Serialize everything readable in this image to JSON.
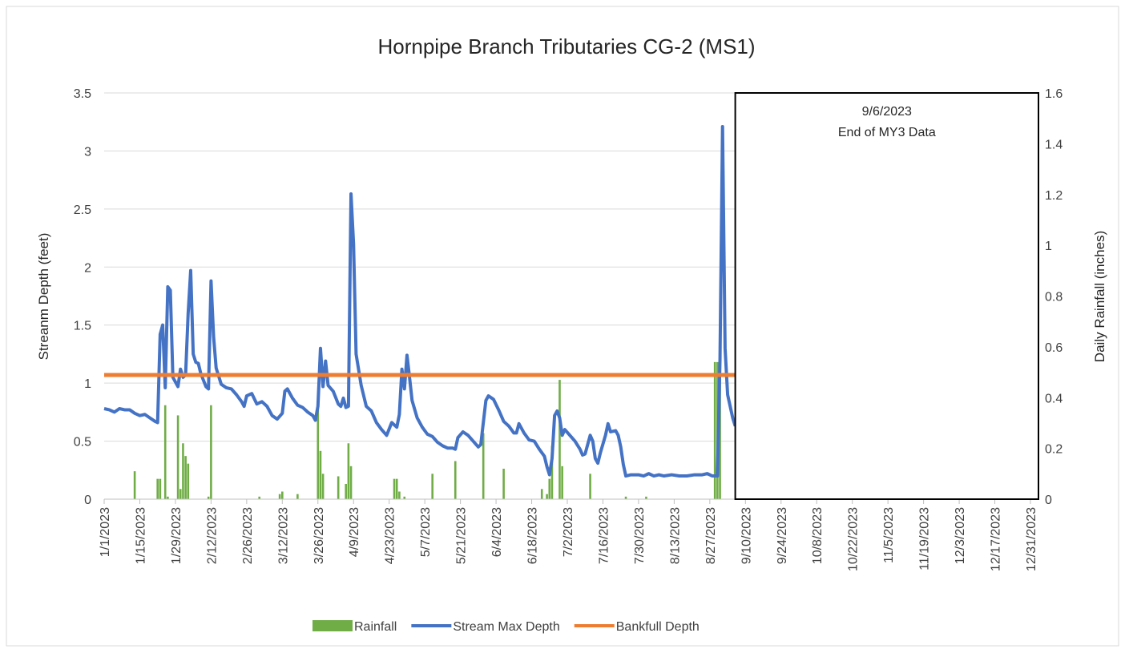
{
  "chart_data": {
    "type": "combo",
    "title": "Hornpipe Branch Tributaries CG-2 (MS1)",
    "y_label": "Streanm Depth (feet)",
    "y2_label": "Daily Rainfall (inches)",
    "xlim": [
      "1/1/2023",
      "12/31/2023"
    ],
    "xticks": [
      "1/1/2023",
      "1/15/2023",
      "1/29/2023",
      "2/12/2023",
      "2/26/2023",
      "3/12/2023",
      "3/26/2023",
      "4/9/2023",
      "4/23/2023",
      "5/7/2023",
      "5/21/2023",
      "6/4/2023",
      "6/18/2023",
      "7/2/2023",
      "7/16/2023",
      "7/30/2023",
      "8/13/2023",
      "8/27/2023",
      "9/10/2023",
      "9/24/2023",
      "10/8/2023",
      "10/22/2023",
      "11/5/2023",
      "11/19/2023",
      "12/3/2023",
      "12/17/2023",
      "12/31/2023"
    ],
    "ylim": [
      0,
      3.5
    ],
    "yticks": [
      0,
      0.5,
      1,
      1.5,
      2,
      2.5,
      3,
      3.5
    ],
    "y2lim": [
      0,
      1.6
    ],
    "y2ticks": [
      0,
      0.2,
      0.4,
      0.6,
      0.8,
      1,
      1.2,
      1.4,
      1.6
    ],
    "grid": true,
    "legend": "bottom",
    "annotation": {
      "lines": [
        "9/6/2023",
        "End of MY3 Data"
      ]
    },
    "series": [
      {
        "name": "Rainfall",
        "type": "bar",
        "axis": "y2",
        "color": "#70ad47",
        "x": [
          "1/13/2023",
          "1/22/2023",
          "1/23/2023",
          "1/25/2023",
          "1/26/2023",
          "1/30/2023",
          "1/31/2023",
          "2/1/2023",
          "2/2/2023",
          "2/3/2023",
          "2/11/2023",
          "2/12/2023",
          "3/3/2023",
          "3/11/2023",
          "3/12/2023",
          "3/18/2023",
          "3/26/2023",
          "3/27/2023",
          "3/28/2023",
          "4/3/2023",
          "4/6/2023",
          "4/7/2023",
          "4/8/2023",
          "4/25/2023",
          "4/26/2023",
          "4/27/2023",
          "4/29/2023",
          "5/10/2023",
          "5/19/2023",
          "5/30/2023",
          "6/7/2023",
          "6/22/2023",
          "6/24/2023",
          "6/25/2023",
          "6/26/2023",
          "6/29/2023",
          "6/30/2023",
          "7/11/2023",
          "7/25/2023",
          "8/2/2023",
          "8/29/2023",
          "8/30/2023",
          "8/31/2023"
        ],
        "values": [
          0.11,
          0.08,
          0.08,
          0.37,
          0.01,
          0.33,
          0.04,
          0.22,
          0.17,
          0.14,
          0.01,
          0.37,
          0.01,
          0.02,
          0.03,
          0.02,
          0.37,
          0.19,
          0.1,
          0.09,
          0.06,
          0.22,
          0.13,
          0.08,
          0.08,
          0.03,
          0.01,
          0.1,
          0.15,
          0.26,
          0.12,
          0.04,
          0.02,
          0.08,
          0.21,
          0.47,
          0.13,
          0.1,
          0.01,
          0.01,
          0.54,
          0.54,
          0.48
        ]
      },
      {
        "name": "Stream Max Depth",
        "type": "line",
        "color": "#4472c4",
        "x": [
          "1/1/2023",
          "1/3/2023",
          "1/5/2023",
          "1/7/2023",
          "1/9/2023",
          "1/11/2023",
          "1/13/2023",
          "1/15/2023",
          "1/17/2023",
          "1/19/2023",
          "1/21/2023",
          "1/22/2023",
          "1/23/2023",
          "1/24/2023",
          "1/25/2023",
          "1/26/2023",
          "1/27/2023",
          "1/28/2023",
          "1/30/2023",
          "1/31/2023",
          "2/1/2023",
          "2/2/2023",
          "2/3/2023",
          "2/4/2023",
          "2/5/2023",
          "2/6/2023",
          "2/7/2023",
          "2/8/2023",
          "2/10/2023",
          "2/11/2023",
          "2/12/2023",
          "2/13/2023",
          "2/14/2023",
          "2/16/2023",
          "2/18/2023",
          "2/20/2023",
          "2/22/2023",
          "2/24/2023",
          "2/25/2023",
          "2/26/2023",
          "2/28/2023",
          "3/2/2023",
          "3/4/2023",
          "3/6/2023",
          "3/8/2023",
          "3/10/2023",
          "3/12/2023",
          "3/13/2023",
          "3/14/2023",
          "3/16/2023",
          "3/18/2023",
          "3/20/2023",
          "3/22/2023",
          "3/24/2023",
          "3/25/2023",
          "3/26/2023",
          "3/27/2023",
          "3/28/2023",
          "3/29/2023",
          "3/30/2023",
          "4/1/2023",
          "4/3/2023",
          "4/4/2023",
          "4/5/2023",
          "4/6/2023",
          "4/7/2023",
          "4/8/2023",
          "4/9/2023",
          "4/10/2023",
          "4/12/2023",
          "4/14/2023",
          "4/16/2023",
          "4/18/2023",
          "4/20/2023",
          "4/22/2023",
          "4/24/2023",
          "4/26/2023",
          "4/27/2023",
          "4/28/2023",
          "4/29/2023",
          "4/30/2023",
          "5/1/2023",
          "5/2/2023",
          "5/4/2023",
          "5/6/2023",
          "5/8/2023",
          "5/10/2023",
          "5/12/2023",
          "5/14/2023",
          "5/16/2023",
          "5/18/2023",
          "5/19/2023",
          "5/20/2023",
          "5/22/2023",
          "5/24/2023",
          "5/26/2023",
          "5/28/2023",
          "5/29/2023",
          "5/31/2023",
          "6/1/2023",
          "6/3/2023",
          "6/5/2023",
          "6/7/2023",
          "6/9/2023",
          "6/11/2023",
          "6/12/2023",
          "6/13/2023",
          "6/15/2023",
          "6/17/2023",
          "6/19/2023",
          "6/21/2023",
          "6/23/2023",
          "6/24/2023",
          "6/25/2023",
          "6/26/2023",
          "6/27/2023",
          "6/28/2023",
          "6/29/2023",
          "6/30/2023",
          "7/1/2023",
          "7/3/2023",
          "7/5/2023",
          "7/7/2023",
          "7/8/2023",
          "7/9/2023",
          "7/11/2023",
          "7/12/2023",
          "7/13/2023",
          "7/14/2023",
          "7/15/2023",
          "7/17/2023",
          "7/18/2023",
          "7/19/2023",
          "7/21/2023",
          "7/22/2023",
          "7/23/2023",
          "7/24/2023",
          "7/25/2023",
          "7/27/2023",
          "7/30/2023",
          "8/1/2023",
          "8/3/2023",
          "8/5/2023",
          "8/7/2023",
          "8/9/2023",
          "8/12/2023",
          "8/15/2023",
          "8/18/2023",
          "8/21/2023",
          "8/24/2023",
          "8/26/2023",
          "8/28/2023",
          "8/30/2023",
          "8/31/2023",
          "9/1/2023",
          "9/2/2023",
          "9/3/2023",
          "9/4/2023",
          "9/5/2023",
          "9/6/2023"
        ],
        "values": [
          0.78,
          0.77,
          0.75,
          0.78,
          0.77,
          0.77,
          0.74,
          0.72,
          0.73,
          0.7,
          0.67,
          0.66,
          1.42,
          1.5,
          0.96,
          1.83,
          1.8,
          1.05,
          0.97,
          1.12,
          1.05,
          1.07,
          1.6,
          1.97,
          1.25,
          1.18,
          1.17,
          1.08,
          0.97,
          0.95,
          1.88,
          1.4,
          1.13,
          0.99,
          0.96,
          0.95,
          0.9,
          0.84,
          0.8,
          0.89,
          0.91,
          0.82,
          0.84,
          0.8,
          0.72,
          0.69,
          0.74,
          0.93,
          0.95,
          0.87,
          0.81,
          0.79,
          0.75,
          0.72,
          0.68,
          0.8,
          1.3,
          0.97,
          1.19,
          0.98,
          0.93,
          0.82,
          0.8,
          0.87,
          0.79,
          0.8,
          2.63,
          2.2,
          1.25,
          0.98,
          0.8,
          0.76,
          0.66,
          0.6,
          0.55,
          0.66,
          0.62,
          0.73,
          1.12,
          0.95,
          1.24,
          1.05,
          0.85,
          0.7,
          0.62,
          0.56,
          0.54,
          0.49,
          0.46,
          0.44,
          0.44,
          0.43,
          0.53,
          0.58,
          0.55,
          0.5,
          0.45,
          0.47,
          0.85,
          0.89,
          0.86,
          0.77,
          0.67,
          0.63,
          0.57,
          0.57,
          0.65,
          0.57,
          0.51,
          0.5,
          0.43,
          0.37,
          0.28,
          0.21,
          0.35,
          0.72,
          0.76,
          0.7,
          0.55,
          0.6,
          0.55,
          0.5,
          0.43,
          0.38,
          0.39,
          0.55,
          0.5,
          0.35,
          0.31,
          0.4,
          0.55,
          0.65,
          0.58,
          0.59,
          0.55,
          0.45,
          0.3,
          0.2,
          0.21,
          0.21,
          0.2,
          0.22,
          0.2,
          0.21,
          0.2,
          0.21,
          0.2,
          0.2,
          0.21,
          0.21,
          0.22,
          0.2,
          0.2,
          1.2,
          3.21,
          1.3,
          0.9,
          0.8,
          0.7,
          0.63
        ]
      },
      {
        "name": "Bankfull Depth",
        "type": "line",
        "color": "#ed7d31",
        "x": [
          "1/1/2023",
          "9/6/2023"
        ],
        "values": [
          1.07,
          1.07
        ]
      }
    ]
  }
}
